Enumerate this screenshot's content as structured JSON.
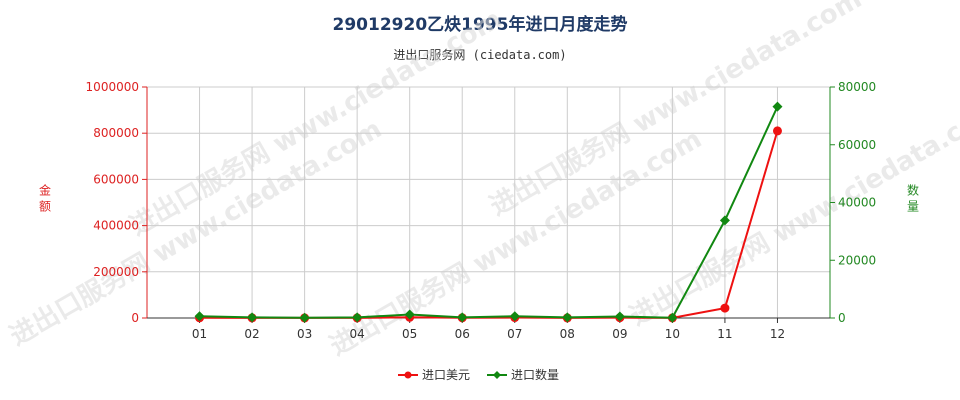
{
  "header": {
    "title": "29012920乙炔1995年进口月度走势",
    "subtitle": "进出口服务网 (ciedata.com)"
  },
  "watermark": "进出口服务网 www.ciedata.com",
  "colors": {
    "amount": "#ee1111",
    "quantity": "#118811"
  },
  "chart_data": {
    "type": "line",
    "title": "29012920乙炔1995年进口月度走势",
    "categories": [
      "01",
      "02",
      "03",
      "04",
      "05",
      "06",
      "07",
      "08",
      "09",
      "10",
      "11",
      "12"
    ],
    "y_left": {
      "label": "金额",
      "ylim": [
        0,
        1000000
      ],
      "ticks": [
        "0",
        "200000",
        "400000",
        "600000",
        "800000",
        "1000000"
      ]
    },
    "y_right": {
      "label": "数量",
      "ylim": [
        0,
        80000
      ],
      "ticks": [
        "0",
        "20000",
        "40000",
        "60000",
        "80000"
      ]
    },
    "series": [
      {
        "name": "进口美元",
        "axis": "left",
        "values": [
          1000,
          500,
          300,
          500,
          3000,
          1000,
          2000,
          500,
          1500,
          500,
          43000,
          810000
        ]
      },
      {
        "name": "进口数量",
        "axis": "right",
        "values": [
          600,
          200,
          100,
          200,
          1200,
          200,
          600,
          200,
          500,
          100,
          33800,
          73200
        ]
      }
    ],
    "legend": {
      "position": "bottom-center"
    },
    "grid": true
  }
}
